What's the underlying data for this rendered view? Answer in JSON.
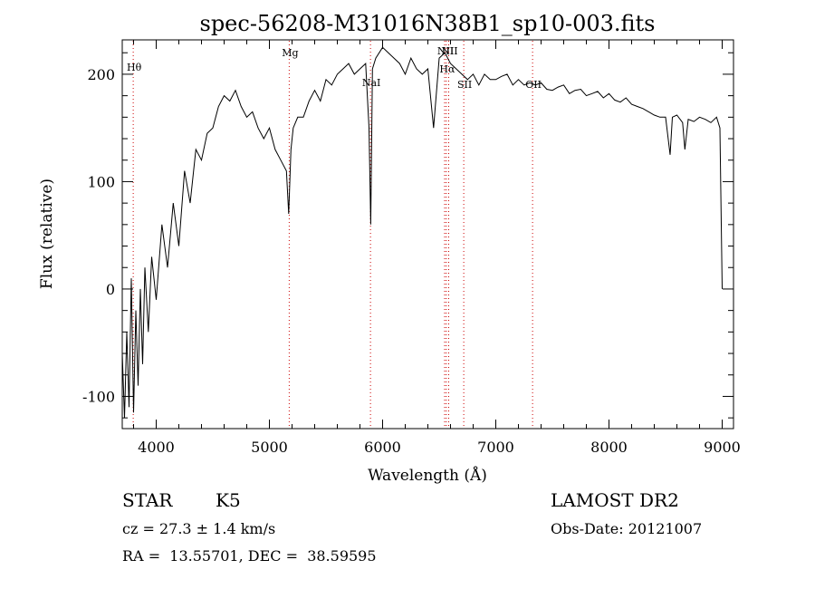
{
  "chart_data": {
    "type": "line",
    "title": "spec-56208-M31016N38B1_sp10-003.fits",
    "xlabel": "Wavelength (Å)",
    "ylabel": "Flux (relative)",
    "xlim": [
      3700,
      9100
    ],
    "ylim": [
      -130,
      232
    ],
    "x_ticks": [
      4000,
      5000,
      6000,
      7000,
      8000,
      9000
    ],
    "y_ticks": [
      -100,
      0,
      100,
      200
    ],
    "grid": false,
    "line_color": "#000000",
    "marker_color": "#cc0000",
    "series": [
      {
        "x": [
          3700,
          3720,
          3740,
          3760,
          3780,
          3800,
          3820,
          3840,
          3860,
          3880,
          3900,
          3930,
          3960,
          4000,
          4050,
          4100,
          4150,
          4200,
          4250,
          4300,
          4350,
          4400,
          4450,
          4500,
          4550,
          4600,
          4650,
          4700,
          4750,
          4800,
          4850,
          4900,
          4950,
          5000,
          5050,
          5100,
          5150,
          5170,
          5190,
          5210,
          5250,
          5300,
          5350,
          5400,
          5450,
          5500,
          5550,
          5600,
          5650,
          5700,
          5750,
          5800,
          5850,
          5880,
          5895,
          5910,
          5940,
          6000,
          6050,
          6100,
          6150,
          6200,
          6250,
          6300,
          6350,
          6400,
          6450,
          6500,
          6550,
          6600,
          6650,
          6700,
          6750,
          6800,
          6850,
          6900,
          6950,
          7000,
          7050,
          7100,
          7150,
          7200,
          7250,
          7300,
          7350,
          7400,
          7450,
          7500,
          7550,
          7600,
          7650,
          7700,
          7750,
          7800,
          7850,
          7900,
          7950,
          8000,
          8050,
          8100,
          8150,
          8200,
          8250,
          8300,
          8350,
          8400,
          8450,
          8500,
          8540,
          8560,
          8600,
          8650,
          8670,
          8700,
          8750,
          8800,
          8850,
          8900,
          8950,
          8980,
          9000
        ],
        "y": [
          -60,
          -120,
          -40,
          -110,
          10,
          -115,
          -20,
          -90,
          0,
          -70,
          20,
          -40,
          30,
          -10,
          60,
          20,
          80,
          40,
          110,
          80,
          130,
          120,
          145,
          150,
          170,
          180,
          175,
          185,
          170,
          160,
          165,
          150,
          140,
          150,
          130,
          120,
          110,
          70,
          130,
          150,
          160,
          160,
          175,
          185,
          175,
          195,
          190,
          200,
          205,
          210,
          200,
          205,
          210,
          150,
          60,
          205,
          215,
          225,
          220,
          215,
          210,
          200,
          215,
          205,
          200,
          205,
          150,
          215,
          220,
          210,
          205,
          200,
          195,
          200,
          190,
          200,
          195,
          195,
          198,
          200,
          190,
          195,
          190,
          192,
          190,
          192,
          186,
          185,
          188,
          190,
          182,
          185,
          186,
          180,
          182,
          184,
          178,
          182,
          176,
          174,
          178,
          172,
          170,
          168,
          165,
          162,
          160,
          160,
          125,
          160,
          162,
          155,
          130,
          158,
          156,
          160,
          158,
          155,
          160,
          150,
          0
        ]
      }
    ],
    "lines": [
      {
        "label": "Hθ",
        "x": 3797
      },
      {
        "label": "Mg",
        "x": 5175
      },
      {
        "label": "NaI",
        "x": 5893
      },
      {
        "label": "NII",
        "x": 6548
      },
      {
        "label": "Hα",
        "x": 6563
      },
      {
        "label": "NII",
        "x": 6584
      },
      {
        "label": "SII",
        "x": 6717
      },
      {
        "label": "OII",
        "x": 7325
      }
    ]
  },
  "info": {
    "class": "STAR",
    "subclass": "K5",
    "survey": "LAMOST DR2",
    "cz": "cz = 27.3 ± 1.4 km/s",
    "obs_date": "Obs-Date: 20121007",
    "coords": "RA =  13.55701, DEC =  38.59595"
  }
}
